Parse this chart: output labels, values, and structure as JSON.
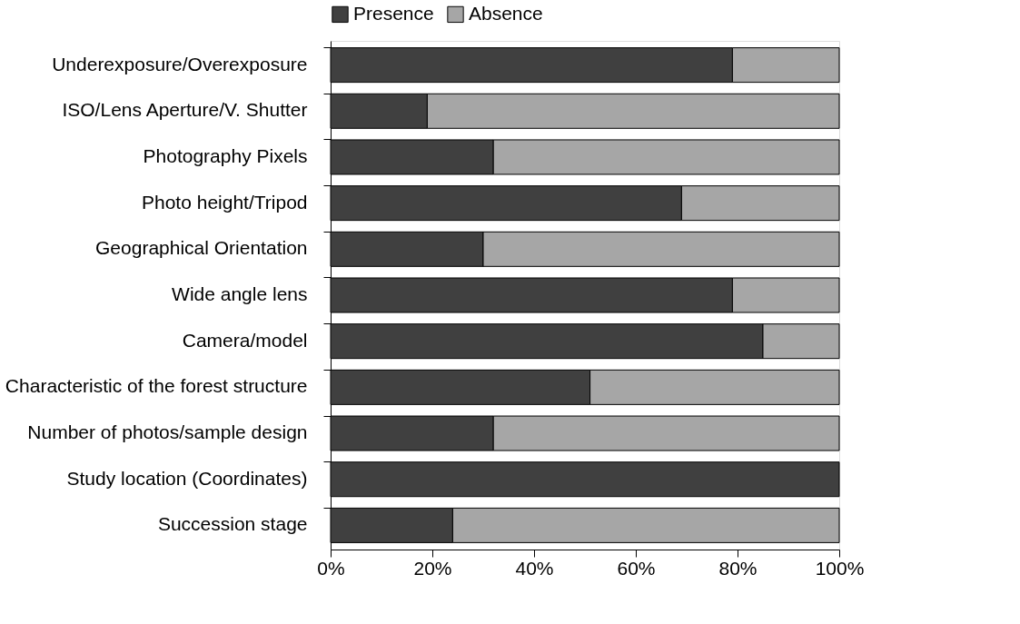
{
  "chart_data": {
    "type": "bar",
    "orientation": "horizontal",
    "stacked": true,
    "categories": [
      "Underexposure/Overexposure",
      "ISO/Lens Aperture/V. Shutter",
      "Photography Pixels",
      "Photo height/Tripod",
      "Geographical Orientation",
      "Wide angle lens",
      "Camera/model",
      "Characteristic of the forest structure",
      "Number of photos/sample design",
      "Study location (Coordinates)",
      "Succession stage"
    ],
    "series": [
      {
        "name": "Presence",
        "color": "#404040",
        "values": [
          79,
          19,
          32,
          69,
          30,
          79,
          85,
          51,
          32,
          100,
          24
        ]
      },
      {
        "name": "Absence",
        "color": "#a6a6a6",
        "values": [
          21,
          81,
          68,
          31,
          70,
          21,
          15,
          49,
          68,
          0,
          76
        ]
      }
    ],
    "xlim": [
      0,
      100
    ],
    "xticks": [
      {
        "value": 0,
        "label": "0%"
      },
      {
        "value": 20,
        "label": "20%"
      },
      {
        "value": 40,
        "label": "40%"
      },
      {
        "value": 60,
        "label": "60%"
      },
      {
        "value": 80,
        "label": "80%"
      },
      {
        "value": 100,
        "label": "100%"
      }
    ],
    "grid": false,
    "legend": "top"
  }
}
